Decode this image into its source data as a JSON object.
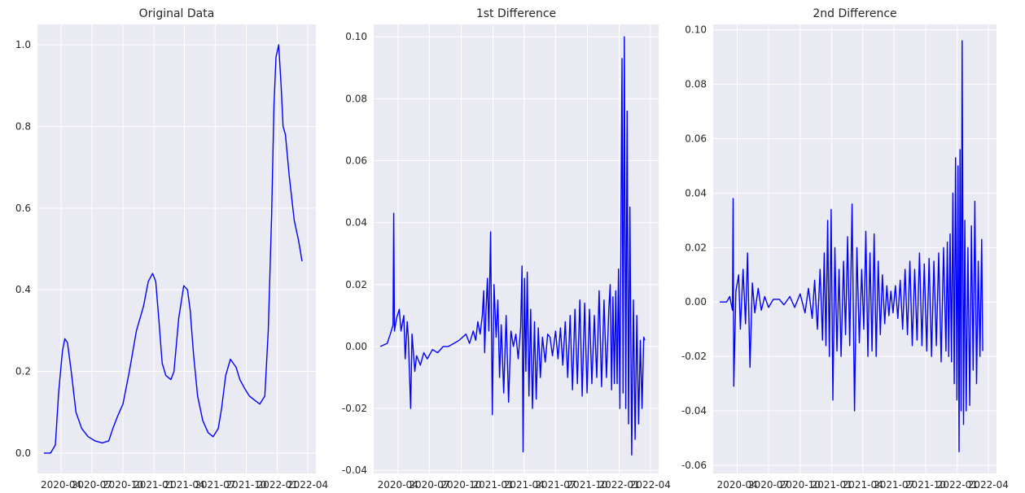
{
  "chart_data": [
    {
      "type": "line",
      "title": "Original Data",
      "xlabel": "",
      "ylabel": "",
      "x_tick_labels": [
        "2020-04",
        "2020-07",
        "2020-10",
        "2021-01",
        "2021-04",
        "2021-07",
        "2021-10",
        "2022-01",
        "2022-04"
      ],
      "xlim": [
        "2020-01-22",
        "2022-04-25"
      ],
      "ylim": [
        -0.05,
        1.05
      ],
      "y_ticks": [
        0.0,
        0.2,
        0.4,
        0.6,
        0.8,
        1.0
      ],
      "y_tick_labels": [
        "0.0",
        "0.2",
        "0.4",
        "0.6",
        "0.8",
        "1.0"
      ],
      "grid": true,
      "series": [
        {
          "color": "#0000ff",
          "x": [
            "2020-02-10",
            "2020-03-01",
            "2020-03-15",
            "2020-03-25",
            "2020-04-05",
            "2020-04-12",
            "2020-04-20",
            "2020-05-01",
            "2020-05-15",
            "2020-06-01",
            "2020-06-20",
            "2020-07-10",
            "2020-08-01",
            "2020-08-20",
            "2020-09-01",
            "2020-09-15",
            "2020-10-01",
            "2020-10-20",
            "2020-11-10",
            "2020-12-01",
            "2020-12-15",
            "2020-12-28",
            "2021-01-06",
            "2021-01-15",
            "2021-01-25",
            "2021-02-05",
            "2021-02-20",
            "2021-03-01",
            "2021-03-15",
            "2021-03-30",
            "2021-04-10",
            "2021-04-18",
            "2021-04-28",
            "2021-05-10",
            "2021-05-25",
            "2021-06-10",
            "2021-06-25",
            "2021-07-10",
            "2021-07-20",
            "2021-08-01",
            "2021-08-15",
            "2021-09-01",
            "2021-09-12",
            "2021-09-25",
            "2021-10-10",
            "2021-10-25",
            "2021-11-10",
            "2021-11-25",
            "2021-12-05",
            "2021-12-15",
            "2021-12-22",
            "2021-12-28",
            "2022-01-05",
            "2022-01-12",
            "2022-01-18",
            "2022-01-25",
            "2022-02-05",
            "2022-02-20",
            "2022-03-05",
            "2022-03-15"
          ],
          "values": [
            0.0,
            0.0,
            0.02,
            0.15,
            0.25,
            0.28,
            0.27,
            0.2,
            0.1,
            0.06,
            0.04,
            0.03,
            0.025,
            0.03,
            0.06,
            0.09,
            0.12,
            0.2,
            0.3,
            0.36,
            0.42,
            0.44,
            0.42,
            0.33,
            0.22,
            0.19,
            0.18,
            0.2,
            0.33,
            0.41,
            0.4,
            0.35,
            0.24,
            0.14,
            0.08,
            0.05,
            0.04,
            0.06,
            0.11,
            0.19,
            0.23,
            0.21,
            0.18,
            0.16,
            0.14,
            0.13,
            0.12,
            0.14,
            0.3,
            0.58,
            0.85,
            0.97,
            1.0,
            0.9,
            0.8,
            0.78,
            0.68,
            0.57,
            0.52,
            0.47
          ]
        }
      ]
    },
    {
      "type": "line",
      "title": "1st Difference",
      "xlabel": "",
      "ylabel": "",
      "x_tick_labels": [
        "2020-04",
        "2020-07",
        "2020-10",
        "2021-01",
        "2021-04",
        "2021-07",
        "2021-10",
        "2022-01",
        "2022-04"
      ],
      "xlim": [
        "2020-01-22",
        "2022-04-25"
      ],
      "ylim": [
        -0.041,
        0.104
      ],
      "y_ticks": [
        -0.04,
        -0.02,
        0.0,
        0.02,
        0.04,
        0.06,
        0.08,
        0.1
      ],
      "y_tick_labels": [
        "-0.04",
        "-0.02",
        "0.00",
        "0.02",
        "0.04",
        "0.06",
        "0.08",
        "0.10"
      ],
      "grid": true,
      "series": [
        {
          "color": "#0000ff",
          "x": [
            "2020-02-10",
            "2020-03-01",
            "2020-03-10",
            "2020-03-18",
            "2020-03-20",
            "2020-03-22",
            "2020-03-28",
            "2020-04-05",
            "2020-04-10",
            "2020-04-18",
            "2020-04-22",
            "2020-04-28",
            "2020-05-01",
            "2020-05-08",
            "2020-05-12",
            "2020-05-20",
            "2020-05-25",
            "2020-06-05",
            "2020-06-15",
            "2020-06-25",
            "2020-07-10",
            "2020-07-25",
            "2020-08-10",
            "2020-08-25",
            "2020-09-10",
            "2020-09-25",
            "2020-10-05",
            "2020-10-15",
            "2020-10-25",
            "2020-11-05",
            "2020-11-12",
            "2020-11-18",
            "2020-11-25",
            "2020-12-01",
            "2020-12-05",
            "2020-12-08",
            "2020-12-12",
            "2020-12-16",
            "2020-12-20",
            "2020-12-25",
            "2020-12-30",
            "2021-01-04",
            "2021-01-10",
            "2021-01-15",
            "2021-01-20",
            "2021-01-25",
            "2021-02-01",
            "2021-02-08",
            "2021-02-15",
            "2021-02-22",
            "2021-03-01",
            "2021-03-08",
            "2021-03-15",
            "2021-03-22",
            "2021-03-26",
            "2021-03-29",
            "2021-04-02",
            "2021-04-06",
            "2021-04-10",
            "2021-04-15",
            "2021-04-20",
            "2021-04-25",
            "2021-05-01",
            "2021-05-06",
            "2021-05-12",
            "2021-05-18",
            "2021-05-24",
            "2021-06-01",
            "2021-06-08",
            "2021-06-15",
            "2021-06-22",
            "2021-07-01",
            "2021-07-08",
            "2021-07-15",
            "2021-07-22",
            "2021-07-29",
            "2021-08-05",
            "2021-08-12",
            "2021-08-19",
            "2021-08-26",
            "2021-09-02",
            "2021-09-09",
            "2021-09-16",
            "2021-09-23",
            "2021-09-30",
            "2021-10-07",
            "2021-10-14",
            "2021-10-21",
            "2021-10-28",
            "2021-11-04",
            "2021-11-11",
            "2021-11-18",
            "2021-11-25",
            "2021-12-02",
            "2021-12-06",
            "2021-12-10",
            "2021-12-14",
            "2021-12-18",
            "2021-12-22",
            "2021-12-26",
            "2021-12-30",
            "2022-01-03",
            "2022-01-06",
            "2022-01-09",
            "2022-01-12",
            "2022-01-16",
            "2022-01-20",
            "2022-01-24",
            "2022-01-28",
            "2022-02-01",
            "2022-02-06",
            "2022-02-11",
            "2022-02-16",
            "2022-02-21",
            "2022-02-26",
            "2022-03-03",
            "2022-03-08",
            "2022-03-13",
            "2022-03-16"
          ],
          "values": [
            0.0,
            0.001,
            0.004,
            0.007,
            0.043,
            0.005,
            0.009,
            0.012,
            0.005,
            0.01,
            -0.004,
            0.008,
            0.003,
            -0.02,
            0.004,
            -0.008,
            -0.003,
            -0.006,
            -0.002,
            -0.004,
            -0.001,
            -0.002,
            0.0,
            0.0,
            0.001,
            0.002,
            0.003,
            0.004,
            0.001,
            0.005,
            0.002,
            0.008,
            0.004,
            0.01,
            0.018,
            -0.002,
            0.012,
            0.022,
            0.005,
            0.037,
            -0.022,
            0.02,
            0.003,
            0.015,
            -0.01,
            0.007,
            -0.015,
            0.01,
            -0.018,
            0.005,
            0.0,
            0.004,
            -0.004,
            0.006,
            0.026,
            -0.034,
            0.022,
            -0.008,
            0.024,
            -0.016,
            0.012,
            -0.02,
            0.008,
            -0.017,
            0.006,
            -0.01,
            0.003,
            -0.005,
            0.004,
            0.003,
            -0.003,
            0.005,
            -0.004,
            0.006,
            -0.006,
            0.008,
            -0.01,
            0.01,
            -0.014,
            0.012,
            -0.012,
            0.015,
            -0.016,
            0.014,
            -0.015,
            0.012,
            -0.012,
            0.01,
            -0.01,
            0.018,
            -0.013,
            0.015,
            -0.01,
            0.012,
            0.02,
            -0.014,
            0.016,
            -0.012,
            0.018,
            -0.012,
            0.025,
            -0.02,
            0.038,
            0.093,
            -0.015,
            0.1,
            -0.02,
            0.076,
            -0.025,
            0.045,
            -0.035,
            0.015,
            -0.03,
            0.01,
            -0.025,
            0.002,
            -0.02,
            0.003,
            0.002
          ]
        }
      ]
    },
    {
      "type": "line",
      "title": "2nd Difference",
      "xlabel": "",
      "ylabel": "",
      "x_tick_labels": [
        "2020-04",
        "2020-07",
        "2020-10",
        "2021-01",
        "2021-04",
        "2021-07",
        "2021-10",
        "2022-01",
        "2022-04"
      ],
      "xlim": [
        "2020-01-22",
        "2022-04-25"
      ],
      "ylim": [
        -0.063,
        0.102
      ],
      "y_ticks": [
        -0.06,
        -0.04,
        -0.02,
        0.0,
        0.02,
        0.04,
        0.06,
        0.08,
        0.1
      ],
      "y_tick_labels": [
        "-0.06",
        "-0.04",
        "-0.02",
        "0.00",
        "0.02",
        "0.04",
        "0.06",
        "0.08",
        "0.10"
      ],
      "grid": true,
      "series": [
        {
          "color": "#0000ff",
          "x": [
            "2020-02-10",
            "2020-03-01",
            "2020-03-10",
            "2020-03-18",
            "2020-03-20",
            "2020-03-22",
            "2020-03-28",
            "2020-04-05",
            "2020-04-10",
            "2020-04-18",
            "2020-04-25",
            "2020-05-01",
            "2020-05-08",
            "2020-05-15",
            "2020-05-22",
            "2020-06-01",
            "2020-06-10",
            "2020-06-20",
            "2020-07-01",
            "2020-07-15",
            "2020-08-01",
            "2020-08-15",
            "2020-09-01",
            "2020-09-15",
            "2020-10-01",
            "2020-10-15",
            "2020-10-25",
            "2020-11-05",
            "2020-11-12",
            "2020-11-20",
            "2020-11-28",
            "2020-12-05",
            "2020-12-10",
            "2020-12-15",
            "2020-12-20",
            "2020-12-25",
            "2020-12-30",
            "2021-01-04",
            "2021-01-10",
            "2021-01-16",
            "2021-01-22",
            "2021-01-28",
            "2021-02-04",
            "2021-02-10",
            "2021-02-16",
            "2021-02-22",
            "2021-03-01",
            "2021-03-08",
            "2021-03-15",
            "2021-03-22",
            "2021-03-29",
            "2021-04-04",
            "2021-04-10",
            "2021-04-16",
            "2021-04-22",
            "2021-04-28",
            "2021-05-04",
            "2021-05-10",
            "2021-05-16",
            "2021-05-22",
            "2021-05-28",
            "2021-06-04",
            "2021-06-10",
            "2021-06-16",
            "2021-06-22",
            "2021-06-28",
            "2021-07-05",
            "2021-07-12",
            "2021-07-19",
            "2021-07-26",
            "2021-08-02",
            "2021-08-09",
            "2021-08-16",
            "2021-08-23",
            "2021-08-30",
            "2021-09-06",
            "2021-09-13",
            "2021-09-20",
            "2021-09-27",
            "2021-10-04",
            "2021-10-11",
            "2021-10-18",
            "2021-10-25",
            "2021-11-01",
            "2021-11-08",
            "2021-11-15",
            "2021-11-22",
            "2021-11-29",
            "2021-12-03",
            "2021-12-07",
            "2021-12-11",
            "2021-12-15",
            "2021-12-19",
            "2021-12-23",
            "2021-12-27",
            "2021-12-31",
            "2022-01-03",
            "2022-01-06",
            "2022-01-09",
            "2022-01-12",
            "2022-01-15",
            "2022-01-19",
            "2022-01-23",
            "2022-01-27",
            "2022-02-01",
            "2022-02-06",
            "2022-02-11",
            "2022-02-16",
            "2022-02-21",
            "2022-02-26",
            "2022-03-03",
            "2022-03-08",
            "2022-03-13",
            "2022-03-16"
          ],
          "values": [
            0.0,
            0.0,
            0.002,
            -0.003,
            0.038,
            -0.031,
            0.004,
            0.01,
            -0.01,
            0.012,
            -0.008,
            0.018,
            -0.024,
            0.007,
            -0.004,
            0.005,
            -0.003,
            0.002,
            -0.002,
            0.001,
            0.001,
            -0.001,
            0.002,
            -0.002,
            0.003,
            -0.004,
            0.005,
            -0.006,
            0.008,
            -0.01,
            0.012,
            -0.014,
            0.018,
            -0.016,
            0.03,
            -0.02,
            0.034,
            -0.036,
            0.02,
            -0.018,
            0.012,
            -0.02,
            0.015,
            -0.012,
            0.024,
            -0.016,
            0.036,
            -0.04,
            0.02,
            -0.015,
            0.012,
            -0.01,
            0.026,
            -0.02,
            0.018,
            -0.018,
            0.025,
            -0.02,
            0.015,
            -0.012,
            0.01,
            -0.008,
            0.006,
            -0.005,
            0.004,
            -0.004,
            0.006,
            -0.006,
            0.008,
            -0.01,
            0.012,
            -0.012,
            0.015,
            -0.016,
            0.012,
            -0.014,
            0.018,
            -0.016,
            0.014,
            -0.018,
            0.016,
            -0.02,
            0.015,
            -0.016,
            0.018,
            -0.022,
            0.02,
            -0.018,
            0.022,
            -0.02,
            0.025,
            -0.022,
            0.04,
            -0.03,
            0.053,
            -0.036,
            0.05,
            -0.055,
            0.056,
            -0.04,
            0.096,
            -0.045,
            0.03,
            -0.04,
            0.02,
            -0.038,
            0.028,
            -0.025,
            0.037,
            -0.03,
            0.015,
            -0.02,
            0.023,
            -0.018
          ]
        }
      ]
    }
  ]
}
